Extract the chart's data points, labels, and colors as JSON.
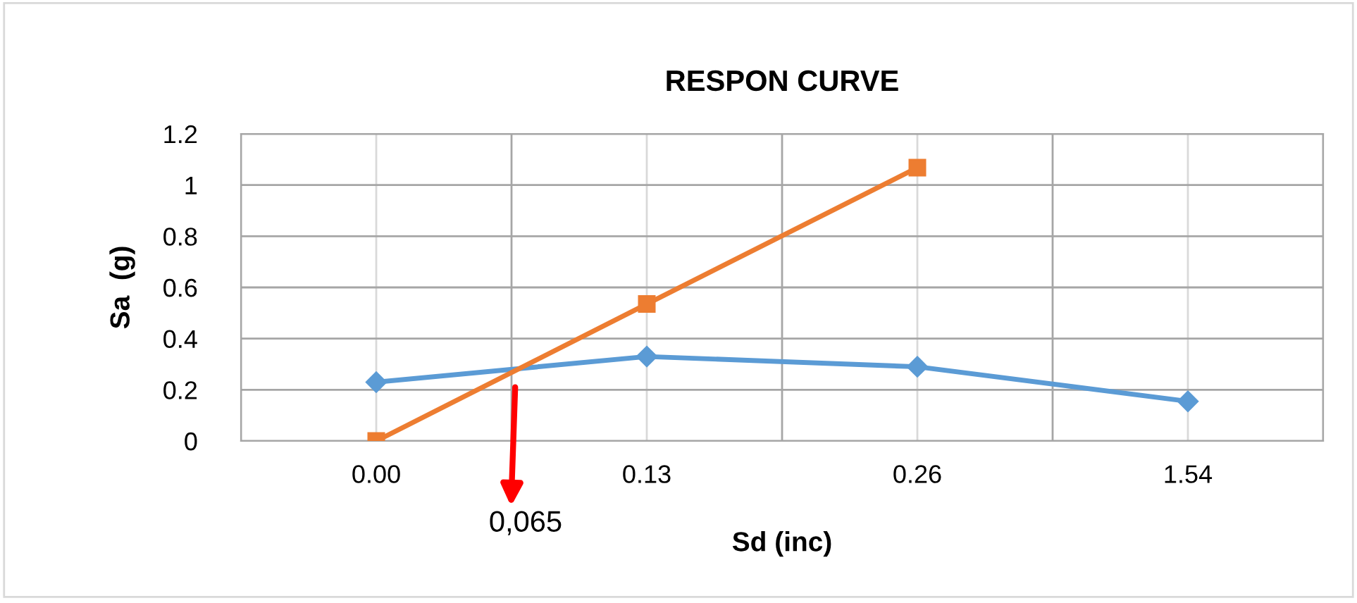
{
  "chart_data": {
    "type": "line",
    "title": "RESPON CURVE",
    "xlabel": "Sd (inc)",
    "ylabel": "Sa  (g)",
    "categories": [
      "0.00",
      "0.13",
      "0.26",
      "1.54"
    ],
    "series": [
      {
        "color": "#5b9bd5",
        "marker": "diamond",
        "values": [
          0.23,
          0.33,
          0.29,
          0.155
        ]
      },
      {
        "color": "#ed7d31",
        "marker": "square",
        "values": [
          0,
          0.535,
          1.068,
          null
        ]
      }
    ],
    "ylim": [
      0,
      1.2
    ],
    "yticks": [
      0,
      0.2,
      0.4,
      0.6,
      0.8,
      1,
      1.2
    ],
    "grid": true,
    "annotations": [
      "0,065"
    ]
  }
}
